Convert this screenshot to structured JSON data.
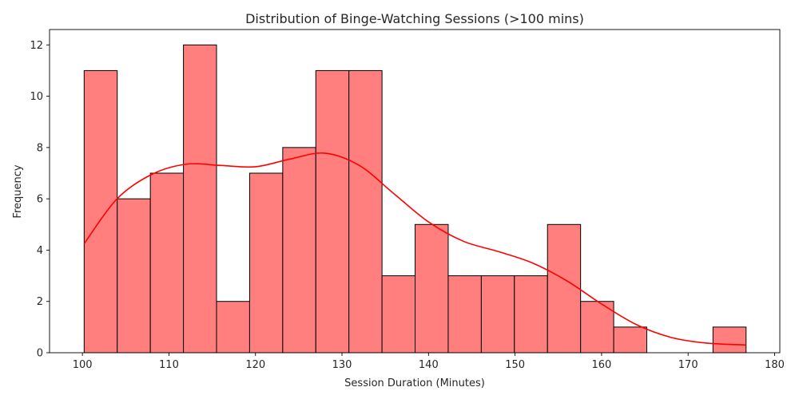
{
  "chart_data": {
    "type": "bar",
    "subtype": "histogram",
    "title": "Distribution of Binge-Watching Sessions (>100 mins)",
    "xlabel": "Session Duration (Minutes)",
    "ylabel": "Frequency",
    "xlim": [
      96.2,
      180.6
    ],
    "ylim": [
      0,
      12.6
    ],
    "xticks": [
      100,
      110,
      120,
      130,
      140,
      150,
      160,
      170,
      180
    ],
    "yticks": [
      0,
      2,
      4,
      6,
      8,
      10,
      12
    ],
    "bin_start": 100.2,
    "bin_width": 3.825,
    "values": [
      11,
      6,
      7,
      12,
      2,
      7,
      8,
      11,
      11,
      3,
      5,
      3,
      3,
      3,
      5,
      2,
      1,
      0,
      0,
      1
    ],
    "bar_color": "#ff7f7f",
    "bar_edge_color": "#000000",
    "kde": {
      "color": "#ff0000",
      "x": [
        100.2,
        104,
        108,
        112,
        116,
        120,
        124,
        128,
        132,
        136,
        140,
        144,
        148,
        152,
        156,
        160,
        164,
        168,
        172,
        176.7
      ],
      "y": [
        4.25,
        6.0,
        6.95,
        7.35,
        7.3,
        7.25,
        7.55,
        7.78,
        7.3,
        6.2,
        5.1,
        4.35,
        3.95,
        3.5,
        2.8,
        1.9,
        1.1,
        0.6,
        0.38,
        0.3
      ]
    },
    "grid": false,
    "legend": false
  }
}
